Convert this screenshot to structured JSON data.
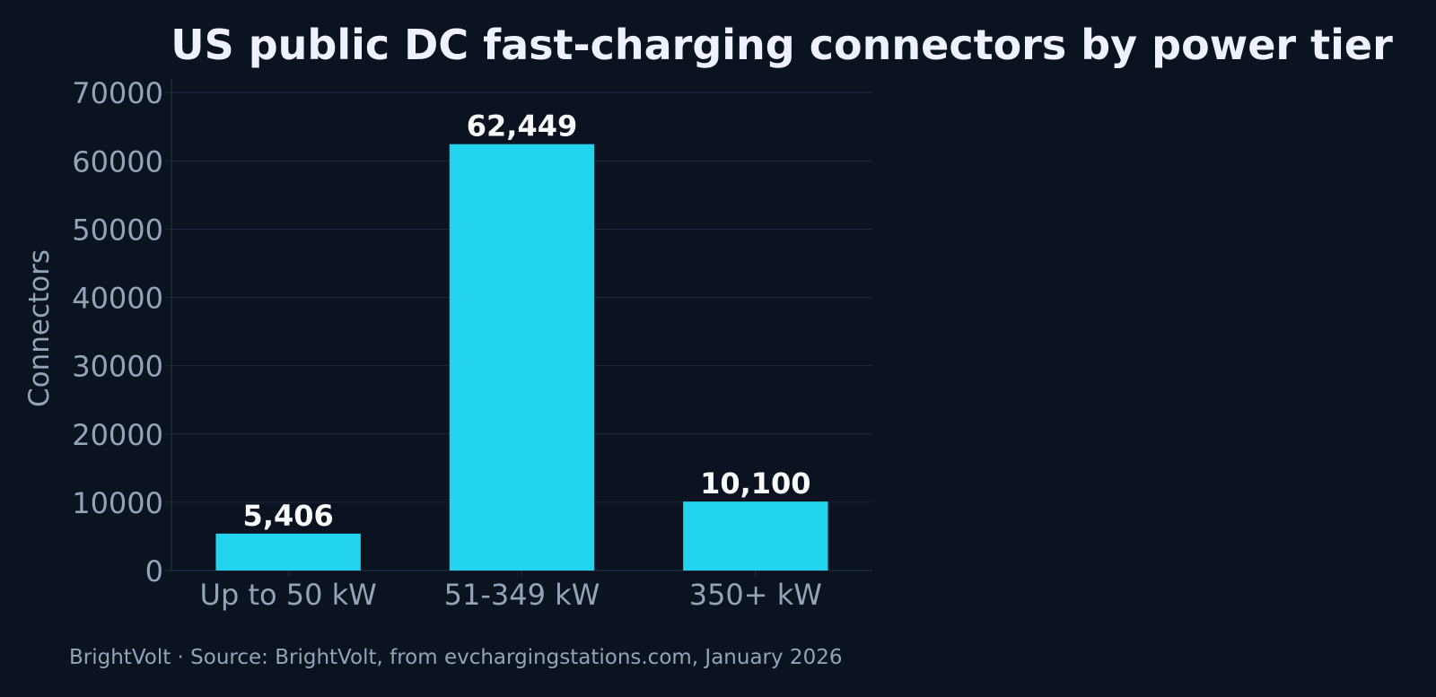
{
  "colors": {
    "background": "#0b1220",
    "bar": "#22d3ee",
    "grid": "#1e2a3d",
    "axis_text": "#94a3b8",
    "title_text": "#eef2ff",
    "label_text": "#f8fafc"
  },
  "chart_data": {
    "type": "bar",
    "title": "US public DC fast-charging connectors by power tier",
    "xlabel": "",
    "ylabel": "Connectors",
    "categories": [
      "Up to 50 kW",
      "51-349 kW",
      "350+ kW"
    ],
    "values": [
      5406,
      62449,
      10100
    ],
    "value_labels": [
      "5,406",
      "62,449",
      "10,100"
    ],
    "ylim": [
      0,
      72000
    ],
    "yticks": [
      0,
      10000,
      20000,
      30000,
      40000,
      50000,
      60000,
      70000
    ],
    "ytick_labels": [
      "0",
      "10000",
      "20000",
      "30000",
      "40000",
      "50000",
      "60000",
      "70000"
    ],
    "grid": true,
    "legend": "none"
  },
  "footer": {
    "text": "BrightVolt  ·  Source: BrightVolt, from evchargingstations.com, January 2026"
  }
}
